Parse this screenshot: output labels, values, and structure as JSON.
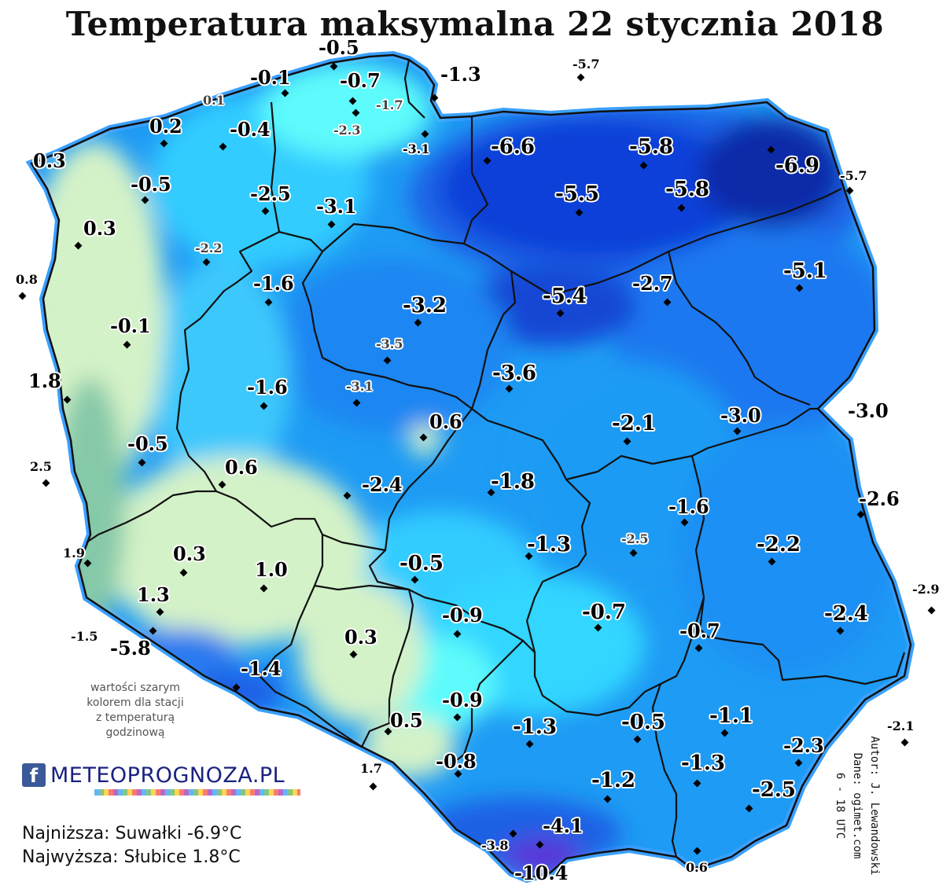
{
  "title": "Temperatura maksymalna 22 stycznia 2018",
  "note": {
    "line1": "wartości szarym",
    "line2": "kolorem dla stacji",
    "line3": "z temperaturą",
    "line4": "godzinową"
  },
  "brand": {
    "icon": "facebook-icon",
    "name": "METEOPROGNOZA.PL"
  },
  "stats": {
    "lowest": "Najniższa: Suwałki -6.9°C",
    "highest": "Najwyższa: Słubice 1.8°C"
  },
  "credits": {
    "author": "Autor: J. Lewandowski",
    "data": "Dane: ogimet.com",
    "period": "6 - 18 UTC"
  },
  "colors": {
    "warm": "#d4f2c8",
    "green_gray": "#86c9a8",
    "cyan": "#5dfbfb",
    "light_blue": "#33ccff",
    "mid_blue": "#1e9bf4",
    "blue": "#1a78f0",
    "deep_blue": "#1040d8",
    "navy": "#0a2aa8",
    "mountain": "#5a34d8"
  },
  "stations": [
    {
      "id": "s1",
      "t": "-0.5",
      "gray": false
    },
    {
      "id": "s2",
      "t": "-0.1",
      "gray": false
    },
    {
      "id": "s3",
      "t": "-0.7",
      "gray": false
    },
    {
      "id": "s4",
      "t": "-1.3",
      "gray": false
    },
    {
      "id": "s5",
      "t": "-5.7",
      "gray": false
    },
    {
      "id": "s6",
      "t": "0.1",
      "gray": true
    },
    {
      "id": "s7",
      "t": "-1.7",
      "gray": true
    },
    {
      "id": "s8",
      "t": "-2.3",
      "gray": true
    },
    {
      "id": "s9",
      "t": "0.2",
      "gray": false
    },
    {
      "id": "s10",
      "t": "-0.4",
      "gray": false
    },
    {
      "id": "s11",
      "t": "-3.1",
      "gray": false
    },
    {
      "id": "s12",
      "t": "-6.6",
      "gray": false
    },
    {
      "id": "s13",
      "t": "-5.8",
      "gray": false
    },
    {
      "id": "s14",
      "t": "-6.9",
      "gray": false
    },
    {
      "id": "s15",
      "t": "0.3",
      "gray": false
    },
    {
      "id": "s16",
      "t": "-0.5",
      "gray": false
    },
    {
      "id": "s17",
      "t": "-2.5",
      "gray": false
    },
    {
      "id": "s18",
      "t": "-3.1",
      "gray": false
    },
    {
      "id": "s19",
      "t": "-5.5",
      "gray": false
    },
    {
      "id": "s20",
      "t": "-5.8",
      "gray": false
    },
    {
      "id": "s21",
      "t": "-5.7",
      "gray": false
    },
    {
      "id": "s22",
      "t": "0.3",
      "gray": false
    },
    {
      "id": "s23",
      "t": "-2.2",
      "gray": true
    },
    {
      "id": "s24",
      "t": "-5.1",
      "gray": false
    },
    {
      "id": "s25",
      "t": "0.8",
      "gray": false
    },
    {
      "id": "s26",
      "t": "-1.6",
      "gray": false
    },
    {
      "id": "s27",
      "t": "-3.2",
      "gray": false
    },
    {
      "id": "s28",
      "t": "-5.4",
      "gray": false
    },
    {
      "id": "s29",
      "t": "-2.7",
      "gray": false
    },
    {
      "id": "s30",
      "t": "-0.1",
      "gray": false
    },
    {
      "id": "s31",
      "t": "-3.5",
      "gray": true
    },
    {
      "id": "s32",
      "t": "-3.6",
      "gray": false
    },
    {
      "id": "s33",
      "t": "1.8",
      "gray": false
    },
    {
      "id": "s34",
      "t": "-1.6",
      "gray": false
    },
    {
      "id": "s35",
      "t": "-3.1",
      "gray": true
    },
    {
      "id": "s36",
      "t": "0.6",
      "gray": false
    },
    {
      "id": "s37",
      "t": "-2.1",
      "gray": false
    },
    {
      "id": "s38",
      "t": "-3.0",
      "gray": false
    },
    {
      "id": "s39",
      "t": "-3.0",
      "gray": false
    },
    {
      "id": "s40",
      "t": "-0.5",
      "gray": false
    },
    {
      "id": "s41",
      "t": "2.5",
      "gray": false
    },
    {
      "id": "s42",
      "t": "0.6",
      "gray": false
    },
    {
      "id": "s43",
      "t": "-2.4",
      "gray": false
    },
    {
      "id": "s44",
      "t": "-1.8",
      "gray": false
    },
    {
      "id": "s45",
      "t": "-2.6",
      "gray": false
    },
    {
      "id": "s46",
      "t": "-1.6",
      "gray": false
    },
    {
      "id": "s47",
      "t": "1.9",
      "gray": false
    },
    {
      "id": "s48",
      "t": "0.3",
      "gray": false
    },
    {
      "id": "s49",
      "t": "1.0",
      "gray": false
    },
    {
      "id": "s50",
      "t": "-1.3",
      "gray": false
    },
    {
      "id": "s51",
      "t": "-2.5",
      "gray": true
    },
    {
      "id": "s52",
      "t": "-2.2",
      "gray": false
    },
    {
      "id": "s53",
      "t": "-0.5",
      "gray": false
    },
    {
      "id": "s54",
      "t": "1.3",
      "gray": false
    },
    {
      "id": "s55",
      "t": "-2.9",
      "gray": false
    },
    {
      "id": "s56",
      "t": "-0.9",
      "gray": false
    },
    {
      "id": "s57",
      "t": "-0.7",
      "gray": false
    },
    {
      "id": "s58",
      "t": "-2.4",
      "gray": false
    },
    {
      "id": "s59",
      "t": "-1.5",
      "gray": false
    },
    {
      "id": "s60",
      "t": "-5.8",
      "gray": false
    },
    {
      "id": "s61",
      "t": "0.3",
      "gray": false
    },
    {
      "id": "s62",
      "t": "-0.7",
      "gray": false
    },
    {
      "id": "s63",
      "t": "-1.4",
      "gray": false
    },
    {
      "id": "s64",
      "t": "-0.9",
      "gray": false
    },
    {
      "id": "s65",
      "t": "0.5",
      "gray": false
    },
    {
      "id": "s66",
      "t": "-1.3",
      "gray": false
    },
    {
      "id": "s67",
      "t": "-0.5",
      "gray": false
    },
    {
      "id": "s68",
      "t": "-1.1",
      "gray": false
    },
    {
      "id": "s69",
      "t": "-2.1",
      "gray": false
    },
    {
      "id": "s70",
      "t": "-2.3",
      "gray": false
    },
    {
      "id": "s71",
      "t": "1.7",
      "gray": false
    },
    {
      "id": "s72",
      "t": "-0.8",
      "gray": false
    },
    {
      "id": "s73",
      "t": "-1.3",
      "gray": false
    },
    {
      "id": "s74",
      "t": "-1.2",
      "gray": false
    },
    {
      "id": "s75",
      "t": "-2.5",
      "gray": false
    },
    {
      "id": "s76",
      "t": "-4.1",
      "gray": false
    },
    {
      "id": "s77",
      "t": "-3.8",
      "gray": false
    },
    {
      "id": "s78",
      "t": "0.6",
      "gray": false
    },
    {
      "id": "s79",
      "t": "-10.4",
      "gray": false
    }
  ]
}
